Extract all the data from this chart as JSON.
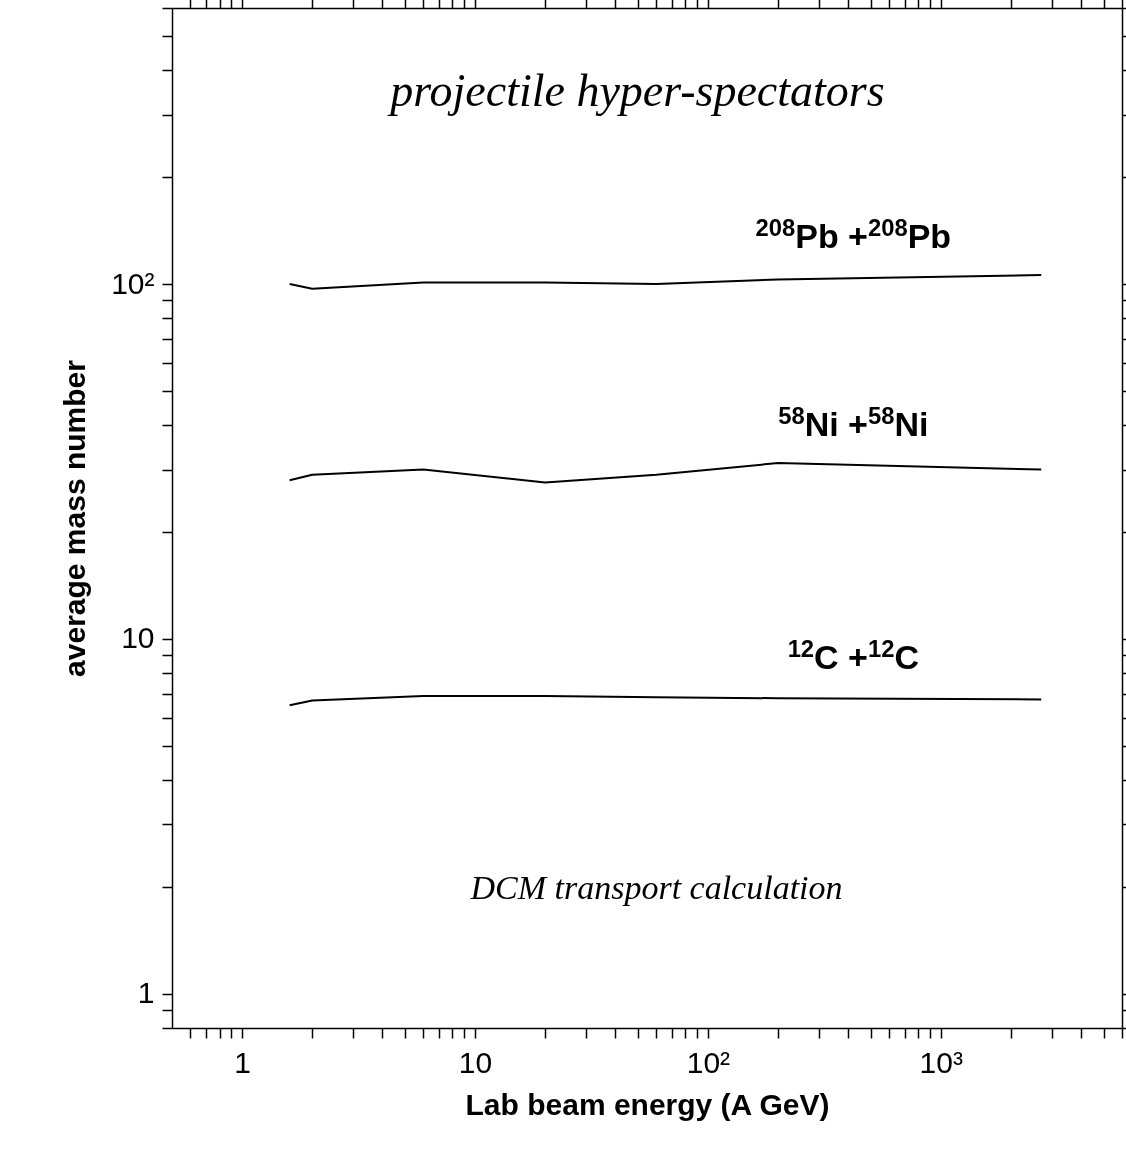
{
  "chart_data": {
    "type": "line",
    "title": "projectile hyper-spectators",
    "xlabel": "Lab beam energy (A GeV)",
    "ylabel": "average mass number",
    "annotations": [
      "DCM transport calculation"
    ],
    "log": "xy",
    "grid": false,
    "marker": "none",
    "line_style": "solid",
    "xlim": [
      0.5,
      6000
    ],
    "ylim": [
      0.8,
      600
    ],
    "xticks": [
      {
        "value": 0.6,
        "label": null
      },
      {
        "value": 0.7,
        "label": null
      },
      {
        "value": 0.8,
        "label": null
      },
      {
        "value": 0.9,
        "label": null
      },
      1,
      {
        "value": 2,
        "label": null
      },
      {
        "value": 3,
        "label": null
      },
      {
        "value": 4,
        "label": null
      },
      {
        "value": 5,
        "label": null
      },
      {
        "value": 6,
        "label": null
      },
      {
        "value": 7,
        "label": null
      },
      {
        "value": 8,
        "label": null
      },
      {
        "value": 9,
        "label": null
      },
      10,
      {
        "value": 20,
        "label": null
      },
      {
        "value": 30,
        "label": null
      },
      {
        "value": 40,
        "label": null
      },
      {
        "value": 50,
        "label": null
      },
      {
        "value": 60,
        "label": null
      },
      {
        "value": 70,
        "label": null
      },
      {
        "value": 80,
        "label": null
      },
      {
        "value": 90,
        "label": null
      },
      {
        "value": 100,
        "label": "10²"
      },
      {
        "value": 200,
        "label": null
      },
      {
        "value": 300,
        "label": null
      },
      {
        "value": 400,
        "label": null
      },
      {
        "value": 500,
        "label": null
      },
      {
        "value": 600,
        "label": null
      },
      {
        "value": 700,
        "label": null
      },
      {
        "value": 800,
        "label": null
      },
      {
        "value": 900,
        "label": null
      },
      {
        "value": 1000,
        "label": "10³"
      },
      {
        "value": 2000,
        "label": null
      },
      {
        "value": 3000,
        "label": null
      },
      {
        "value": 4000,
        "label": null
      },
      {
        "value": 5000,
        "label": null
      },
      {
        "value": 6000,
        "label": null
      }
    ],
    "yticks": [
      {
        "value": 0.8,
        "label": null
      },
      {
        "value": 0.9,
        "label": null
      },
      1,
      {
        "value": 2,
        "label": null
      },
      {
        "value": 3,
        "label": null
      },
      {
        "value": 4,
        "label": null
      },
      {
        "value": 5,
        "label": null
      },
      {
        "value": 6,
        "label": null
      },
      {
        "value": 7,
        "label": null
      },
      {
        "value": 8,
        "label": null
      },
      {
        "value": 9,
        "label": null
      },
      10,
      {
        "value": 20,
        "label": null
      },
      {
        "value": 30,
        "label": null
      },
      {
        "value": 40,
        "label": null
      },
      {
        "value": 50,
        "label": null
      },
      {
        "value": 60,
        "label": null
      },
      {
        "value": 70,
        "label": null
      },
      {
        "value": 80,
        "label": null
      },
      {
        "value": 90,
        "label": null
      },
      {
        "value": 100,
        "label": "10²"
      },
      {
        "value": 200,
        "label": null
      },
      {
        "value": 300,
        "label": null
      },
      {
        "value": 400,
        "label": null
      },
      {
        "value": 500,
        "label": null
      },
      {
        "value": 600,
        "label": null
      }
    ],
    "x": [
      1.6,
      2,
      6,
      20,
      60,
      200,
      2700
    ],
    "series": [
      {
        "name": "$^{208}$Pb +$^{208}$Pb",
        "color": "#000000",
        "values": [
          100,
          97,
          101,
          101,
          100,
          103,
          106
        ]
      },
      {
        "name": "$^{58}$Ni +$^{58}$Ni",
        "color": "#000000",
        "values": [
          28,
          29,
          30,
          27.6,
          29,
          31.3,
          30
        ]
      },
      {
        "name": "$^{12}$C +$^{12}$C",
        "color": "#000000",
        "values": [
          6.5,
          6.7,
          6.9,
          6.9,
          6.85,
          6.8,
          6.75
        ]
      }
    ]
  }
}
